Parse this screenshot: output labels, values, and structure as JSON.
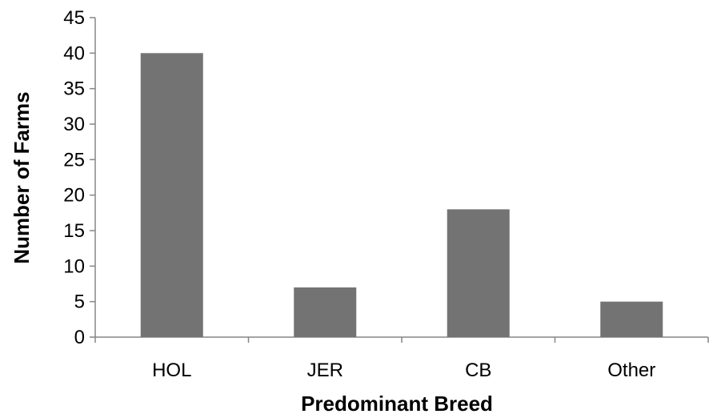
{
  "chart_data": {
    "type": "bar",
    "title": "",
    "xlabel": "Predominant Breed",
    "ylabel": "Number of Farms",
    "categories": [
      "HOL",
      "JER",
      "CB",
      "Other"
    ],
    "values": [
      40,
      7,
      18,
      5
    ],
    "ylim": [
      0,
      45
    ],
    "yticks": [
      0,
      5,
      10,
      15,
      20,
      25,
      30,
      35,
      40,
      45
    ],
    "grid": false,
    "legend": "none",
    "bar_color": "#737373",
    "axis_color": "#868686"
  }
}
